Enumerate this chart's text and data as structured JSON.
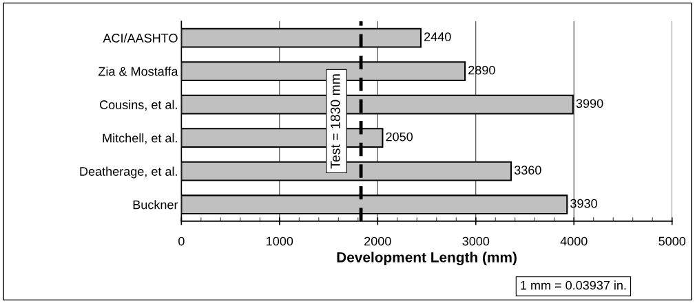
{
  "chart_data": {
    "type": "bar",
    "orientation": "horizontal",
    "xlabel": "Development Length (mm)",
    "categories": [
      "ACI/AASHTO",
      "Zia & Mostaffa",
      "Cousins, et al.",
      "Mitchell, et al.",
      "Deatherage, et al.",
      "Buckner"
    ],
    "values": [
      2440,
      2890,
      3990,
      2050,
      3360,
      3930
    ],
    "color": "#c0c0c0",
    "data_labels": true,
    "xlim": [
      0,
      5000
    ],
    "xticks": [
      0,
      1000,
      2000,
      3000,
      4000,
      5000
    ],
    "grid": "x",
    "ref_lines": [
      {
        "axis": "x",
        "value": 1830,
        "label": "Test = 1830 mm",
        "color": "#000000",
        "line_style": "dashed"
      }
    ],
    "annotations": [
      "1 mm = 0.03937 in."
    ]
  }
}
